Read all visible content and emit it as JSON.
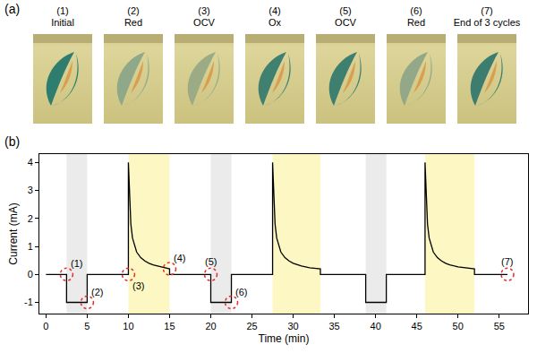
{
  "panel_a": {
    "label": "(a)",
    "frames": [
      {
        "number": "(1)",
        "caption": "Initial",
        "color": "#2e7d6e"
      },
      {
        "number": "(2)",
        "caption": "Red",
        "color": "#8fa88a"
      },
      {
        "number": "(3)",
        "caption": "OCV",
        "color": "#9aab85"
      },
      {
        "number": "(4)",
        "caption": "Ox",
        "color": "#3f8070"
      },
      {
        "number": "(5)",
        "caption": "OCV",
        "color": "#3e7f70"
      },
      {
        "number": "(6)",
        "caption": "Red",
        "color": "#93a888"
      },
      {
        "number": "(7)",
        "caption": "End of 3 cycles",
        "color": "#3c7d70"
      }
    ]
  },
  "chart_data": {
    "type": "line",
    "panel_label": "(b)",
    "x_label": "Time (min)",
    "y_label": "Current (mA)",
    "x": [
      0,
      2.5,
      2.5,
      5,
      5,
      10,
      10,
      10.15,
      10.3,
      10.5,
      10.75,
      11,
      11.5,
      12,
      12.5,
      13,
      14,
      15,
      15,
      20,
      20,
      22.5,
      22.5,
      27.5,
      27.5,
      27.65,
      27.8,
      28,
      28.25,
      28.5,
      29,
      29.5,
      30,
      31,
      32,
      33.3,
      33.3,
      38.8,
      38.8,
      41.3,
      41.3,
      46,
      46,
      46.15,
      46.3,
      46.5,
      46.75,
      47,
      47.5,
      48,
      48.5,
      49,
      50,
      51,
      52,
      52,
      56
    ],
    "values": [
      0,
      0,
      -1,
      -1,
      0,
      0,
      4,
      2.6,
      1.8,
      1.3,
      1.0,
      0.8,
      0.6,
      0.48,
      0.4,
      0.34,
      0.27,
      0.2,
      0,
      0,
      -1,
      -1,
      0,
      0,
      4,
      2.6,
      1.8,
      1.3,
      1.0,
      0.8,
      0.6,
      0.48,
      0.4,
      0.3,
      0.24,
      0.2,
      0,
      0,
      -1,
      -1,
      0,
      0,
      4,
      2.6,
      1.8,
      1.3,
      1.0,
      0.8,
      0.6,
      0.48,
      0.4,
      0.34,
      0.27,
      0.23,
      0.2,
      0,
      0
    ],
    "color": "#000000",
    "xlim": [
      -0.8,
      58.5
    ],
    "ylim": [
      -1.4,
      4.3
    ],
    "xticks": [
      0,
      5,
      10,
      15,
      20,
      25,
      30,
      35,
      40,
      45,
      50,
      55
    ],
    "yticks": [
      -1,
      0,
      1,
      2,
      3,
      4
    ],
    "grid": false,
    "shaded_regions": [
      {
        "x0": 2.5,
        "x1": 5,
        "color": "#ebebeb"
      },
      {
        "x0": 10,
        "x1": 15,
        "color": "#fdf7c3"
      },
      {
        "x0": 20,
        "x1": 22.5,
        "color": "#ebebeb"
      },
      {
        "x0": 27.5,
        "x1": 33.3,
        "color": "#fdf7c3"
      },
      {
        "x0": 38.8,
        "x1": 41.3,
        "color": "#ebebeb"
      },
      {
        "x0": 46,
        "x1": 52,
        "color": "#fdf7c3"
      }
    ],
    "annotations": [
      {
        "x": 2.5,
        "y": 0,
        "text": "(1)",
        "color": "#e03030"
      },
      {
        "x": 5,
        "y": -1,
        "text": "(2)",
        "color": "#e03030"
      },
      {
        "x": 10,
        "y": 0,
        "text": "(3)",
        "color": "#e03030"
      },
      {
        "x": 15,
        "y": 0.2,
        "text": "(4)",
        "color": "#e03030"
      },
      {
        "x": 20,
        "y": 0,
        "text": "(5)",
        "color": "#e03030"
      },
      {
        "x": 22.5,
        "y": -1,
        "text": "(6)",
        "color": "#e03030"
      },
      {
        "x": 56,
        "y": 0,
        "text": "(7)",
        "color": "#e03030"
      }
    ]
  }
}
